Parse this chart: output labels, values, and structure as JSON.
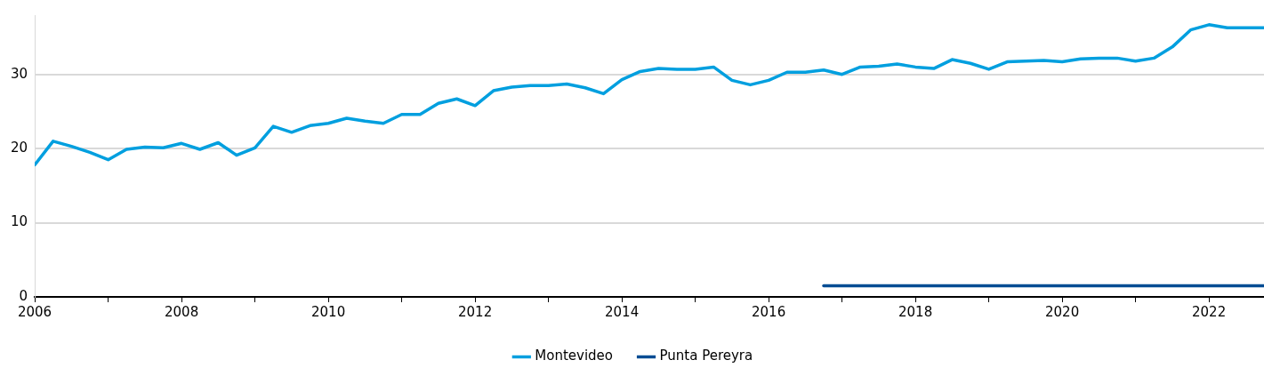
{
  "chart_data": {
    "type": "line",
    "x": [
      2006,
      2006.25,
      2006.5,
      2006.75,
      2007,
      2007.25,
      2007.5,
      2007.75,
      2008,
      2008.25,
      2008.5,
      2008.75,
      2009,
      2009.25,
      2009.5,
      2009.75,
      2010,
      2010.25,
      2010.5,
      2010.75,
      2011,
      2011.25,
      2011.5,
      2011.75,
      2012,
      2012.25,
      2012.5,
      2012.75,
      2013,
      2013.25,
      2013.5,
      2013.75,
      2014,
      2014.25,
      2014.5,
      2014.75,
      2015,
      2015.25,
      2015.5,
      2015.75,
      2016,
      2016.25,
      2016.5,
      2016.75,
      2017,
      2017.25,
      2017.5,
      2017.75,
      2018,
      2018.25,
      2018.5,
      2018.75,
      2019,
      2019.25,
      2019.5,
      2019.75,
      2020,
      2020.25,
      2020.5,
      2020.75,
      2021,
      2021.25,
      2021.5,
      2021.75,
      2022,
      2022.25,
      2022.5,
      2022.75
    ],
    "series": [
      {
        "name": "Montevideo",
        "color": "#009fdf",
        "values": [
          17.8,
          21.0,
          20.3,
          19.5,
          18.5,
          19.9,
          20.2,
          20.1,
          20.7,
          19.9,
          20.8,
          19.1,
          20.1,
          23.0,
          22.2,
          23.1,
          23.4,
          24.1,
          23.7,
          23.4,
          24.6,
          24.6,
          26.1,
          26.7,
          25.8,
          27.8,
          28.3,
          28.5,
          28.5,
          28.7,
          28.2,
          27.4,
          29.3,
          30.4,
          30.8,
          30.7,
          30.7,
          31.0,
          29.2,
          28.6,
          29.2,
          30.3,
          30.3,
          30.6,
          30.0,
          31.0,
          31.1,
          31.4,
          31.0,
          30.8,
          32.0,
          31.5,
          30.7,
          31.7,
          31.8,
          31.9,
          31.7,
          32.1,
          32.2,
          32.2,
          31.8,
          32.2,
          33.7,
          36.0,
          36.7,
          36.3,
          36.3,
          36.3
        ]
      },
      {
        "name": "Punta Pereyra",
        "color": "#004c93",
        "x": [
          2016.75,
          2022.75
        ],
        "values": [
          1.5,
          1.5
        ]
      }
    ],
    "xlim": [
      2006,
      2022.75
    ],
    "xticks": [
      2006,
      {
        "value": 2007,
        "label": null
      },
      2008,
      {
        "value": 2009,
        "label": null
      },
      2010,
      {
        "value": 2011,
        "label": null
      },
      2012,
      {
        "value": 2013,
        "label": null
      },
      2014,
      {
        "value": 2015,
        "label": null
      },
      2016,
      {
        "value": 2017,
        "label": null
      },
      2018,
      {
        "value": 2019,
        "label": null
      },
      2020,
      {
        "value": 2021,
        "label": null
      },
      2022
    ],
    "ylim": [
      0,
      38
    ],
    "yticks": [
      0,
      10,
      20,
      30
    ],
    "grid": "y",
    "legend": "bottom",
    "marker": "none",
    "line_style": "solid"
  }
}
